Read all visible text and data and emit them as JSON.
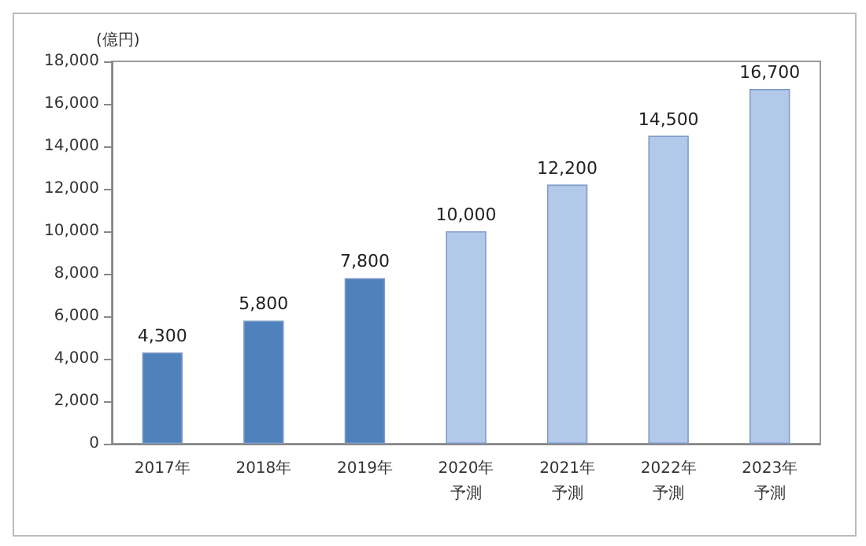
{
  "chart_data": {
    "type": "bar",
    "ylabel": "(億円)",
    "categories": [
      "2017年",
      "2018年",
      "2019年",
      "2020年予測",
      "2021年予測",
      "2022年予測",
      "2023年予測"
    ],
    "values": [
      4300,
      5800,
      7800,
      10000,
      12200,
      14500,
      16700
    ],
    "colors": [
      "#4f81bd",
      "#4f81bd",
      "#4f81bd",
      "#b3c9ea",
      "#b3c9ea",
      "#b3c9ea",
      "#b3c9ea"
    ],
    "value_labels": [
      "4,300",
      "5,800",
      "7,800",
      "10,000",
      "12,200",
      "14,500",
      "16,700"
    ],
    "ylim": [
      0,
      18000
    ],
    "yticks": [
      {
        "value": 0,
        "label": "0"
      },
      {
        "value": 2000,
        "label": "2,000"
      },
      {
        "value": 4000,
        "label": "4,000"
      },
      {
        "value": 6000,
        "label": "6,000"
      },
      {
        "value": 8000,
        "label": "8,000"
      },
      {
        "value": 10000,
        "label": "10,000"
      },
      {
        "value": 12000,
        "label": "12,000"
      },
      {
        "value": 14000,
        "label": "14,000"
      },
      {
        "value": 16000,
        "label": "16,000"
      },
      {
        "value": 18000,
        "label": "18,000"
      }
    ],
    "grid": false
  }
}
